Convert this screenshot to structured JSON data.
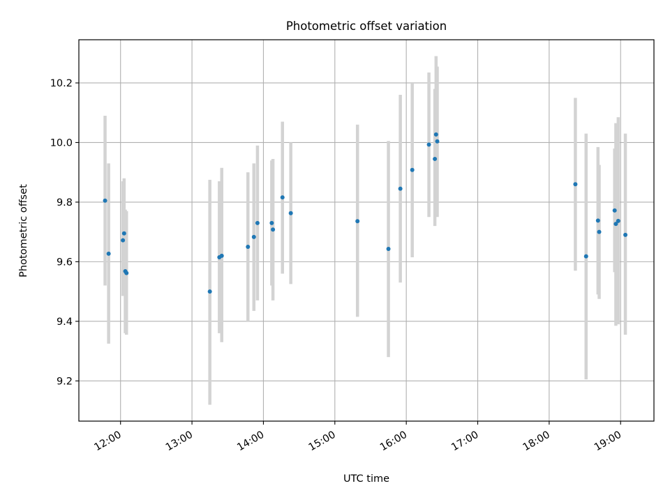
{
  "chart_data": {
    "type": "scatter",
    "title": "Photometric offset variation",
    "xlabel": "UTC time",
    "ylabel": "Photometric offset",
    "x_ticks": [
      "12:00",
      "13:00",
      "14:00",
      "15:00",
      "16:00",
      "17:00",
      "18:00",
      "19:00"
    ],
    "y_ticks": [
      "9.2",
      "9.4",
      "9.6",
      "9.8",
      "10.0",
      "10.2"
    ],
    "xlim": [
      "11:25",
      "19:28"
    ],
    "ylim": [
      9.065,
      10.345
    ],
    "grid": true,
    "marker_color": "#1f77b4",
    "errorbar_color": "#d3d3d3",
    "points": [
      {
        "x": "11:47",
        "y": 9.805,
        "ylo": 9.52,
        "yhi": 10.09
      },
      {
        "x": "11:50",
        "y": 9.627,
        "ylo": 9.325,
        "yhi": 9.93
      },
      {
        "x": "12:02",
        "y": 9.672,
        "ylo": 9.485,
        "yhi": 9.87
      },
      {
        "x": "12:03",
        "y": 9.695,
        "ylo": 9.51,
        "yhi": 9.88
      },
      {
        "x": "12:04",
        "y": 9.568,
        "ylo": 9.36,
        "yhi": 9.775
      },
      {
        "x": "12:05",
        "y": 9.562,
        "ylo": 9.355,
        "yhi": 9.77
      },
      {
        "x": "13:15",
        "y": 9.5,
        "ylo": 9.12,
        "yhi": 9.875
      },
      {
        "x": "13:23",
        "y": 9.615,
        "ylo": 9.36,
        "yhi": 9.87
      },
      {
        "x": "13:25",
        "y": 9.62,
        "ylo": 9.33,
        "yhi": 9.915
      },
      {
        "x": "13:47",
        "y": 9.65,
        "ylo": 9.4,
        "yhi": 9.9
      },
      {
        "x": "13:52",
        "y": 9.683,
        "ylo": 9.435,
        "yhi": 9.93
      },
      {
        "x": "13:55",
        "y": 9.73,
        "ylo": 9.47,
        "yhi": 9.99
      },
      {
        "x": "14:07",
        "y": 9.73,
        "ylo": 9.52,
        "yhi": 9.94
      },
      {
        "x": "14:08",
        "y": 9.708,
        "ylo": 9.47,
        "yhi": 9.945
      },
      {
        "x": "14:16",
        "y": 9.816,
        "ylo": 9.56,
        "yhi": 10.07
      },
      {
        "x": "14:23",
        "y": 9.763,
        "ylo": 9.525,
        "yhi": 10.0
      },
      {
        "x": "15:19",
        "y": 9.736,
        "ylo": 9.415,
        "yhi": 10.06
      },
      {
        "x": "15:45",
        "y": 9.643,
        "ylo": 9.28,
        "yhi": 10.005
      },
      {
        "x": "15:55",
        "y": 9.845,
        "ylo": 9.53,
        "yhi": 10.16
      },
      {
        "x": "16:05",
        "y": 9.908,
        "ylo": 9.615,
        "yhi": 10.2
      },
      {
        "x": "16:19",
        "y": 9.993,
        "ylo": 9.75,
        "yhi": 10.235
      },
      {
        "x": "16:24",
        "y": 9.945,
        "ylo": 9.72,
        "yhi": 10.18
      },
      {
        "x": "16:25",
        "y": 10.027,
        "ylo": 9.76,
        "yhi": 10.29
      },
      {
        "x": "16:26",
        "y": 10.004,
        "ylo": 9.75,
        "yhi": 10.255
      },
      {
        "x": "18:22",
        "y": 9.86,
        "ylo": 9.57,
        "yhi": 10.15
      },
      {
        "x": "18:31",
        "y": 9.618,
        "ylo": 9.205,
        "yhi": 10.03
      },
      {
        "x": "18:41",
        "y": 9.738,
        "ylo": 9.49,
        "yhi": 9.985
      },
      {
        "x": "18:42",
        "y": 9.7,
        "ylo": 9.475,
        "yhi": 9.925
      },
      {
        "x": "18:55",
        "y": 9.772,
        "ylo": 9.565,
        "yhi": 9.98
      },
      {
        "x": "18:56",
        "y": 9.727,
        "ylo": 9.385,
        "yhi": 10.065
      },
      {
        "x": "18:58",
        "y": 9.737,
        "ylo": 9.39,
        "yhi": 10.085
      },
      {
        "x": "19:04",
        "y": 9.69,
        "ylo": 9.355,
        "yhi": 10.03
      }
    ]
  }
}
